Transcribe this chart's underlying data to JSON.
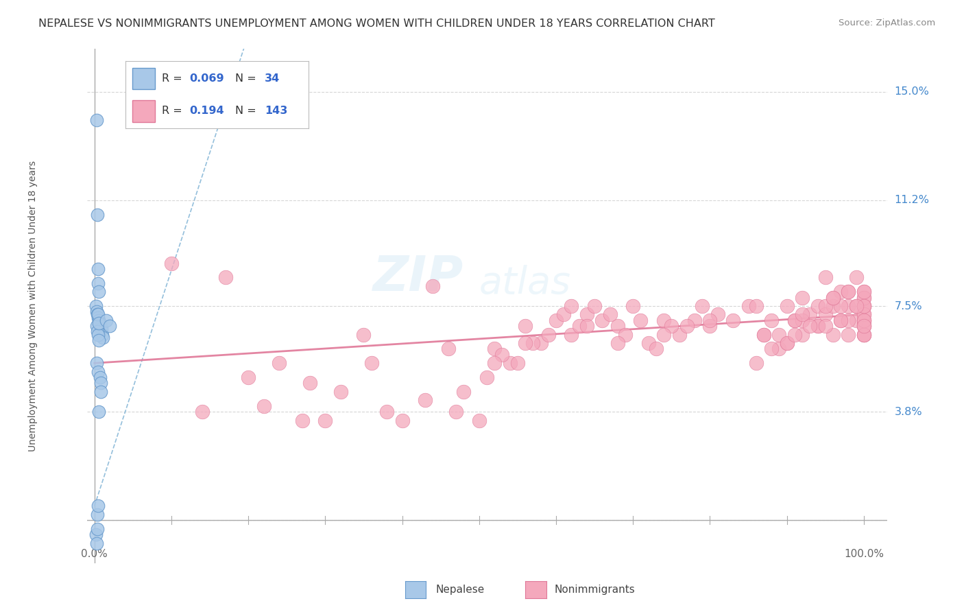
{
  "title": "NEPALESE VS NONIMMIGRANTS UNEMPLOYMENT AMONG WOMEN WITH CHILDREN UNDER 18 YEARS CORRELATION CHART",
  "source": "Source: ZipAtlas.com",
  "ylabel": "Unemployment Among Women with Children Under 18 years",
  "nepalese_R": "0.069",
  "nepalese_N": "34",
  "nonimmigrants_R": "0.194",
  "nonimmigrants_N": "143",
  "nepalese_color": "#a8c8e8",
  "nonimmigrants_color": "#f4a8bc",
  "nepalese_edge": "#6699cc",
  "nonimmigrants_edge": "#e07898",
  "trend_nepalese_color": "#88b8d8",
  "trend_nonimmigrants_color": "#e07898",
  "watermark_color": "#d0e4f0",
  "background": "#ffffff",
  "grid_color": "#cccccc",
  "right_label_color": "#4488cc",
  "axis_color": "#aaaaaa",
  "text_color": "#444444",
  "source_color": "#888888",
  "legend_text_color": "#333333",
  "legend_val_color": "#3366cc",
  "ytick_positions": [
    3.8,
    7.5,
    11.2,
    15.0
  ],
  "ytick_labels": [
    "3.8%",
    "7.5%",
    "11.2%",
    "15.0%"
  ],
  "xlim": [
    0,
    100
  ],
  "ymin": -1.5,
  "ymax": 16.5
}
